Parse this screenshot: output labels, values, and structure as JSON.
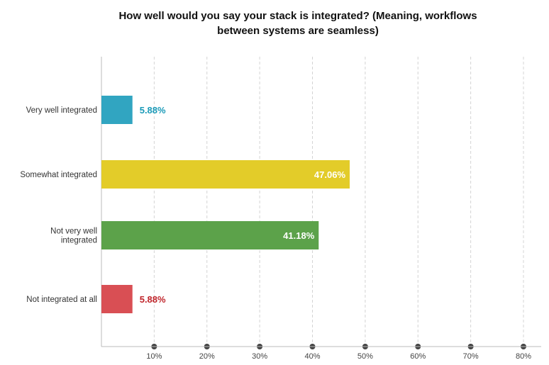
{
  "chart_data": {
    "type": "bar",
    "orientation": "horizontal",
    "title": "How well would you say your stack is integrated? (Meaning, workflows\nbetween systems are seamless)",
    "categories": [
      "Very well integrated",
      "Somewhat integrated",
      "Not very well integrated",
      "Not integrated at all"
    ],
    "category_lines": [
      [
        "Very well integrated"
      ],
      [
        "Somewhat integrated"
      ],
      [
        "Not very well",
        "integrated"
      ],
      [
        "Not integrated at all"
      ]
    ],
    "values": [
      5.88,
      47.06,
      41.18,
      5.88
    ],
    "value_labels": [
      "5.88%",
      "47.06%",
      "41.18%",
      "5.88%"
    ],
    "colors": [
      "#31a5c1",
      "#e3cc29",
      "#5ca24a",
      "#d94f54"
    ],
    "label_colors": [
      "#1a9ab8",
      "#ffffff",
      "#ffffff",
      "#c0252b"
    ],
    "label_inside": [
      false,
      true,
      true,
      false
    ],
    "xlim": [
      0,
      80
    ],
    "xticks": [
      10,
      20,
      30,
      40,
      50,
      60,
      70,
      80
    ],
    "xtick_labels": [
      "10%",
      "20%",
      "30%",
      "40%",
      "50%",
      "60%",
      "70%",
      "80%"
    ],
    "grid": true,
    "legend": false
  }
}
